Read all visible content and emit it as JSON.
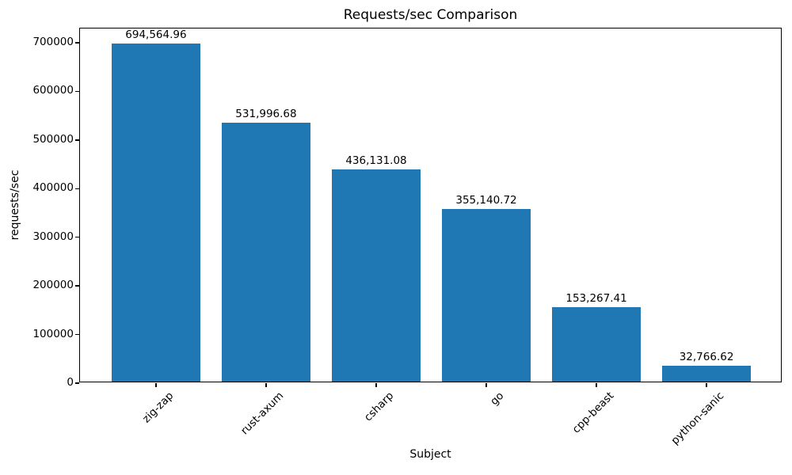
{
  "chart_data": {
    "type": "bar",
    "title": "Requests/sec Comparison",
    "xlabel": "Subject",
    "ylabel": "requests/sec",
    "categories": [
      "zig-zap",
      "rust-axum",
      "csharp",
      "go",
      "cpp-beast",
      "python-sanic"
    ],
    "values": [
      694564.96,
      531996.68,
      436131.08,
      355140.72,
      153267.41,
      32766.62
    ],
    "value_labels": [
      "694,564.96",
      "531,996.68",
      "436,131.08",
      "355,140.72",
      "153,267.41",
      "32,766.62"
    ],
    "yticks": [
      0,
      100000,
      200000,
      300000,
      400000,
      500000,
      600000,
      700000
    ],
    "ylim": [
      0,
      729293
    ],
    "bar_color": "#1f77b4",
    "bar_width_fraction": 0.8,
    "x_margin_units": 0.69,
    "grid": false,
    "legend_position": "none",
    "xtick_rotation_deg": 45
  }
}
